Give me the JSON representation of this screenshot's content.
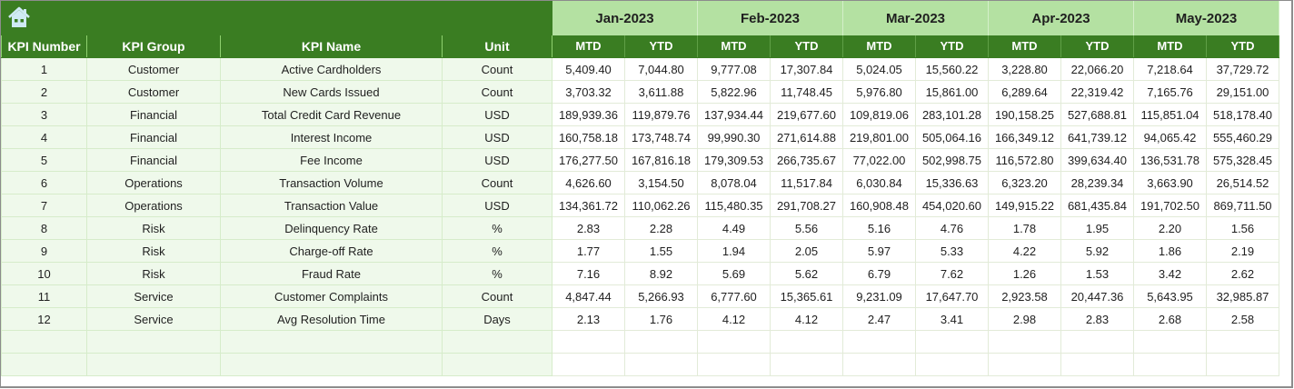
{
  "header": {
    "home_icon": "home-icon",
    "columns": [
      "KPI Number",
      "KPI Group",
      "KPI Name",
      "Unit"
    ],
    "months": [
      "Jan-2023",
      "Feb-2023",
      "Mar-2023",
      "Apr-2023",
      "May-2023"
    ],
    "sub_columns": [
      "MTD",
      "YTD"
    ]
  },
  "colors": {
    "header_dark_green": "#3a7d22",
    "month_light_green": "#b4e1a2",
    "meta_cell_bg": "#eff9eb",
    "grid_line": "#d6ecca"
  },
  "rows": [
    {
      "num": "1",
      "group": "Customer",
      "name": "Active Cardholders",
      "unit": "Count",
      "values": [
        "5,409.40",
        "7,044.80",
        "9,777.08",
        "17,307.84",
        "5,024.05",
        "15,560.22",
        "3,228.80",
        "22,066.20",
        "7,218.64",
        "37,729.72"
      ]
    },
    {
      "num": "2",
      "group": "Customer",
      "name": "New Cards Issued",
      "unit": "Count",
      "values": [
        "3,703.32",
        "3,611.88",
        "5,822.96",
        "11,748.45",
        "5,976.80",
        "15,861.00",
        "6,289.64",
        "22,319.42",
        "7,165.76",
        "29,151.00"
      ]
    },
    {
      "num": "3",
      "group": "Financial",
      "name": "Total Credit Card Revenue",
      "unit": "USD",
      "values": [
        "189,939.36",
        "119,879.76",
        "137,934.44",
        "219,677.60",
        "109,819.06",
        "283,101.28",
        "190,158.25",
        "527,688.81",
        "115,851.04",
        "518,178.40"
      ]
    },
    {
      "num": "4",
      "group": "Financial",
      "name": "Interest Income",
      "unit": "USD",
      "values": [
        "160,758.18",
        "173,748.74",
        "99,990.30",
        "271,614.88",
        "219,801.00",
        "505,064.16",
        "166,349.12",
        "641,739.12",
        "94,065.42",
        "555,460.29"
      ]
    },
    {
      "num": "5",
      "group": "Financial",
      "name": "Fee Income",
      "unit": "USD",
      "values": [
        "176,277.50",
        "167,816.18",
        "179,309.53",
        "266,735.67",
        "77,022.00",
        "502,998.75",
        "116,572.80",
        "399,634.40",
        "136,531.78",
        "575,328.45"
      ]
    },
    {
      "num": "6",
      "group": "Operations",
      "name": "Transaction Volume",
      "unit": "Count",
      "values": [
        "4,626.60",
        "3,154.50",
        "8,078.04",
        "11,517.84",
        "6,030.84",
        "15,336.63",
        "6,323.20",
        "28,239.34",
        "3,663.90",
        "26,514.52"
      ]
    },
    {
      "num": "7",
      "group": "Operations",
      "name": "Transaction Value",
      "unit": "USD",
      "values": [
        "134,361.72",
        "110,062.26",
        "115,480.35",
        "291,708.27",
        "160,908.48",
        "454,020.60",
        "149,915.22",
        "681,435.84",
        "191,702.50",
        "869,711.50"
      ]
    },
    {
      "num": "8",
      "group": "Risk",
      "name": "Delinquency Rate",
      "unit": "%",
      "values": [
        "2.83",
        "2.28",
        "4.49",
        "5.56",
        "5.16",
        "4.76",
        "1.78",
        "1.95",
        "2.20",
        "1.56"
      ]
    },
    {
      "num": "9",
      "group": "Risk",
      "name": "Charge-off Rate",
      "unit": "%",
      "values": [
        "1.77",
        "1.55",
        "1.94",
        "2.05",
        "5.97",
        "5.33",
        "4.22",
        "5.92",
        "1.86",
        "2.19"
      ]
    },
    {
      "num": "10",
      "group": "Risk",
      "name": "Fraud Rate",
      "unit": "%",
      "values": [
        "7.16",
        "8.92",
        "5.69",
        "5.62",
        "6.79",
        "7.62",
        "1.26",
        "1.53",
        "3.42",
        "2.62"
      ]
    },
    {
      "num": "11",
      "group": "Service",
      "name": "Customer Complaints",
      "unit": "Count",
      "values": [
        "4,847.44",
        "5,266.93",
        "6,777.60",
        "15,365.61",
        "9,231.09",
        "17,647.70",
        "2,923.58",
        "20,447.36",
        "5,643.95",
        "32,985.87"
      ]
    },
    {
      "num": "12",
      "group": "Service",
      "name": "Avg Resolution Time",
      "unit": "Days",
      "values": [
        "2.13",
        "1.76",
        "4.12",
        "4.12",
        "2.47",
        "3.41",
        "2.98",
        "2.83",
        "2.68",
        "2.58"
      ]
    }
  ],
  "empty_rows": 2
}
